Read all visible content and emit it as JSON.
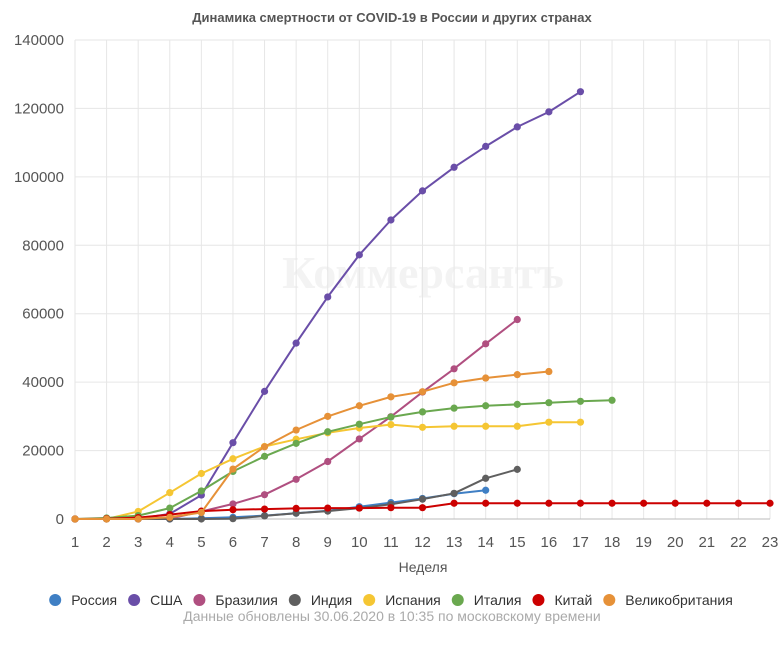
{
  "chart_data": {
    "type": "line",
    "title": "Динамика смертности от COVID-19 в России и других странах",
    "xlabel": "Неделя",
    "ylabel": "",
    "x": [
      1,
      2,
      3,
      4,
      5,
      6,
      7,
      8,
      9,
      10,
      11,
      12,
      13,
      14,
      15,
      16,
      17,
      18,
      19,
      20,
      21,
      22,
      23
    ],
    "ylim": [
      0,
      140000
    ],
    "yticks": [
      0,
      20000,
      40000,
      60000,
      80000,
      100000,
      120000,
      140000
    ],
    "grid": true,
    "legend_position": "bottom",
    "watermark": "Коммерсантъ",
    "footer": "Данные обновлены 30.06.2020 в 10:35 по московскому времени",
    "series": [
      {
        "name": "Россия",
        "color": "#3f7fc4",
        "values": [
          0,
          0,
          0,
          5,
          200,
          500,
          1000,
          1700,
          2400,
          3600,
          4800,
          6000,
          7400,
          8400,
          null,
          null,
          null,
          null,
          null,
          null,
          null,
          null,
          null
        ]
      },
      {
        "name": "США",
        "color": "#6a4ea8",
        "values": [
          0,
          0,
          100,
          1500,
          7000,
          22300,
          37300,
          51400,
          64900,
          77200,
          87400,
          95900,
          102800,
          108900,
          114600,
          119000,
          124900,
          null,
          null,
          null,
          null,
          null,
          null
        ]
      },
      {
        "name": "Бразилия",
        "color": "#b04f80",
        "values": [
          0,
          0,
          0,
          100,
          2200,
          4400,
          7100,
          11600,
          16800,
          23400,
          29900,
          37100,
          43900,
          51200,
          58300,
          null,
          null,
          null,
          null,
          null,
          null,
          null,
          null
        ]
      },
      {
        "name": "Индия",
        "color": "#5f5f5f",
        "values": [
          0,
          0,
          0,
          0,
          0,
          100,
          900,
          1700,
          2300,
          3200,
          4300,
          5800,
          7500,
          11900,
          14500,
          null,
          null,
          null,
          null,
          null,
          null,
          null,
          null
        ]
      },
      {
        "name": "Испания",
        "color": "#f5c633",
        "values": [
          0,
          0,
          2200,
          7700,
          13300,
          17600,
          21200,
          23300,
          25200,
          26600,
          27600,
          26800,
          27100,
          27100,
          27100,
          28300,
          28300,
          null,
          null,
          null,
          null,
          null,
          null
        ]
      },
      {
        "name": "Италия",
        "color": "#6aa84f",
        "values": [
          0,
          300,
          1000,
          3200,
          8200,
          13900,
          18300,
          22100,
          25500,
          27700,
          29800,
          31300,
          32400,
          33100,
          33500,
          34000,
          34400,
          34700,
          null,
          null,
          null,
          null,
          null
        ]
      },
      {
        "name": "Китай",
        "color": "#cc0000",
        "values": [
          0,
          100,
          400,
          1300,
          2300,
          2700,
          2900,
          3100,
          3200,
          3200,
          3300,
          3300,
          4600,
          4600,
          4600,
          4600,
          4600,
          4600,
          4600,
          4600,
          4600,
          4600,
          4600
        ]
      },
      {
        "name": "Великобритания",
        "color": "#e69138",
        "values": [
          0,
          0,
          0,
          500,
          1900,
          14600,
          21100,
          26000,
          30000,
          33100,
          35700,
          37200,
          39800,
          41200,
          42200,
          43100,
          null,
          null,
          null,
          null,
          null,
          null,
          null
        ]
      }
    ]
  }
}
